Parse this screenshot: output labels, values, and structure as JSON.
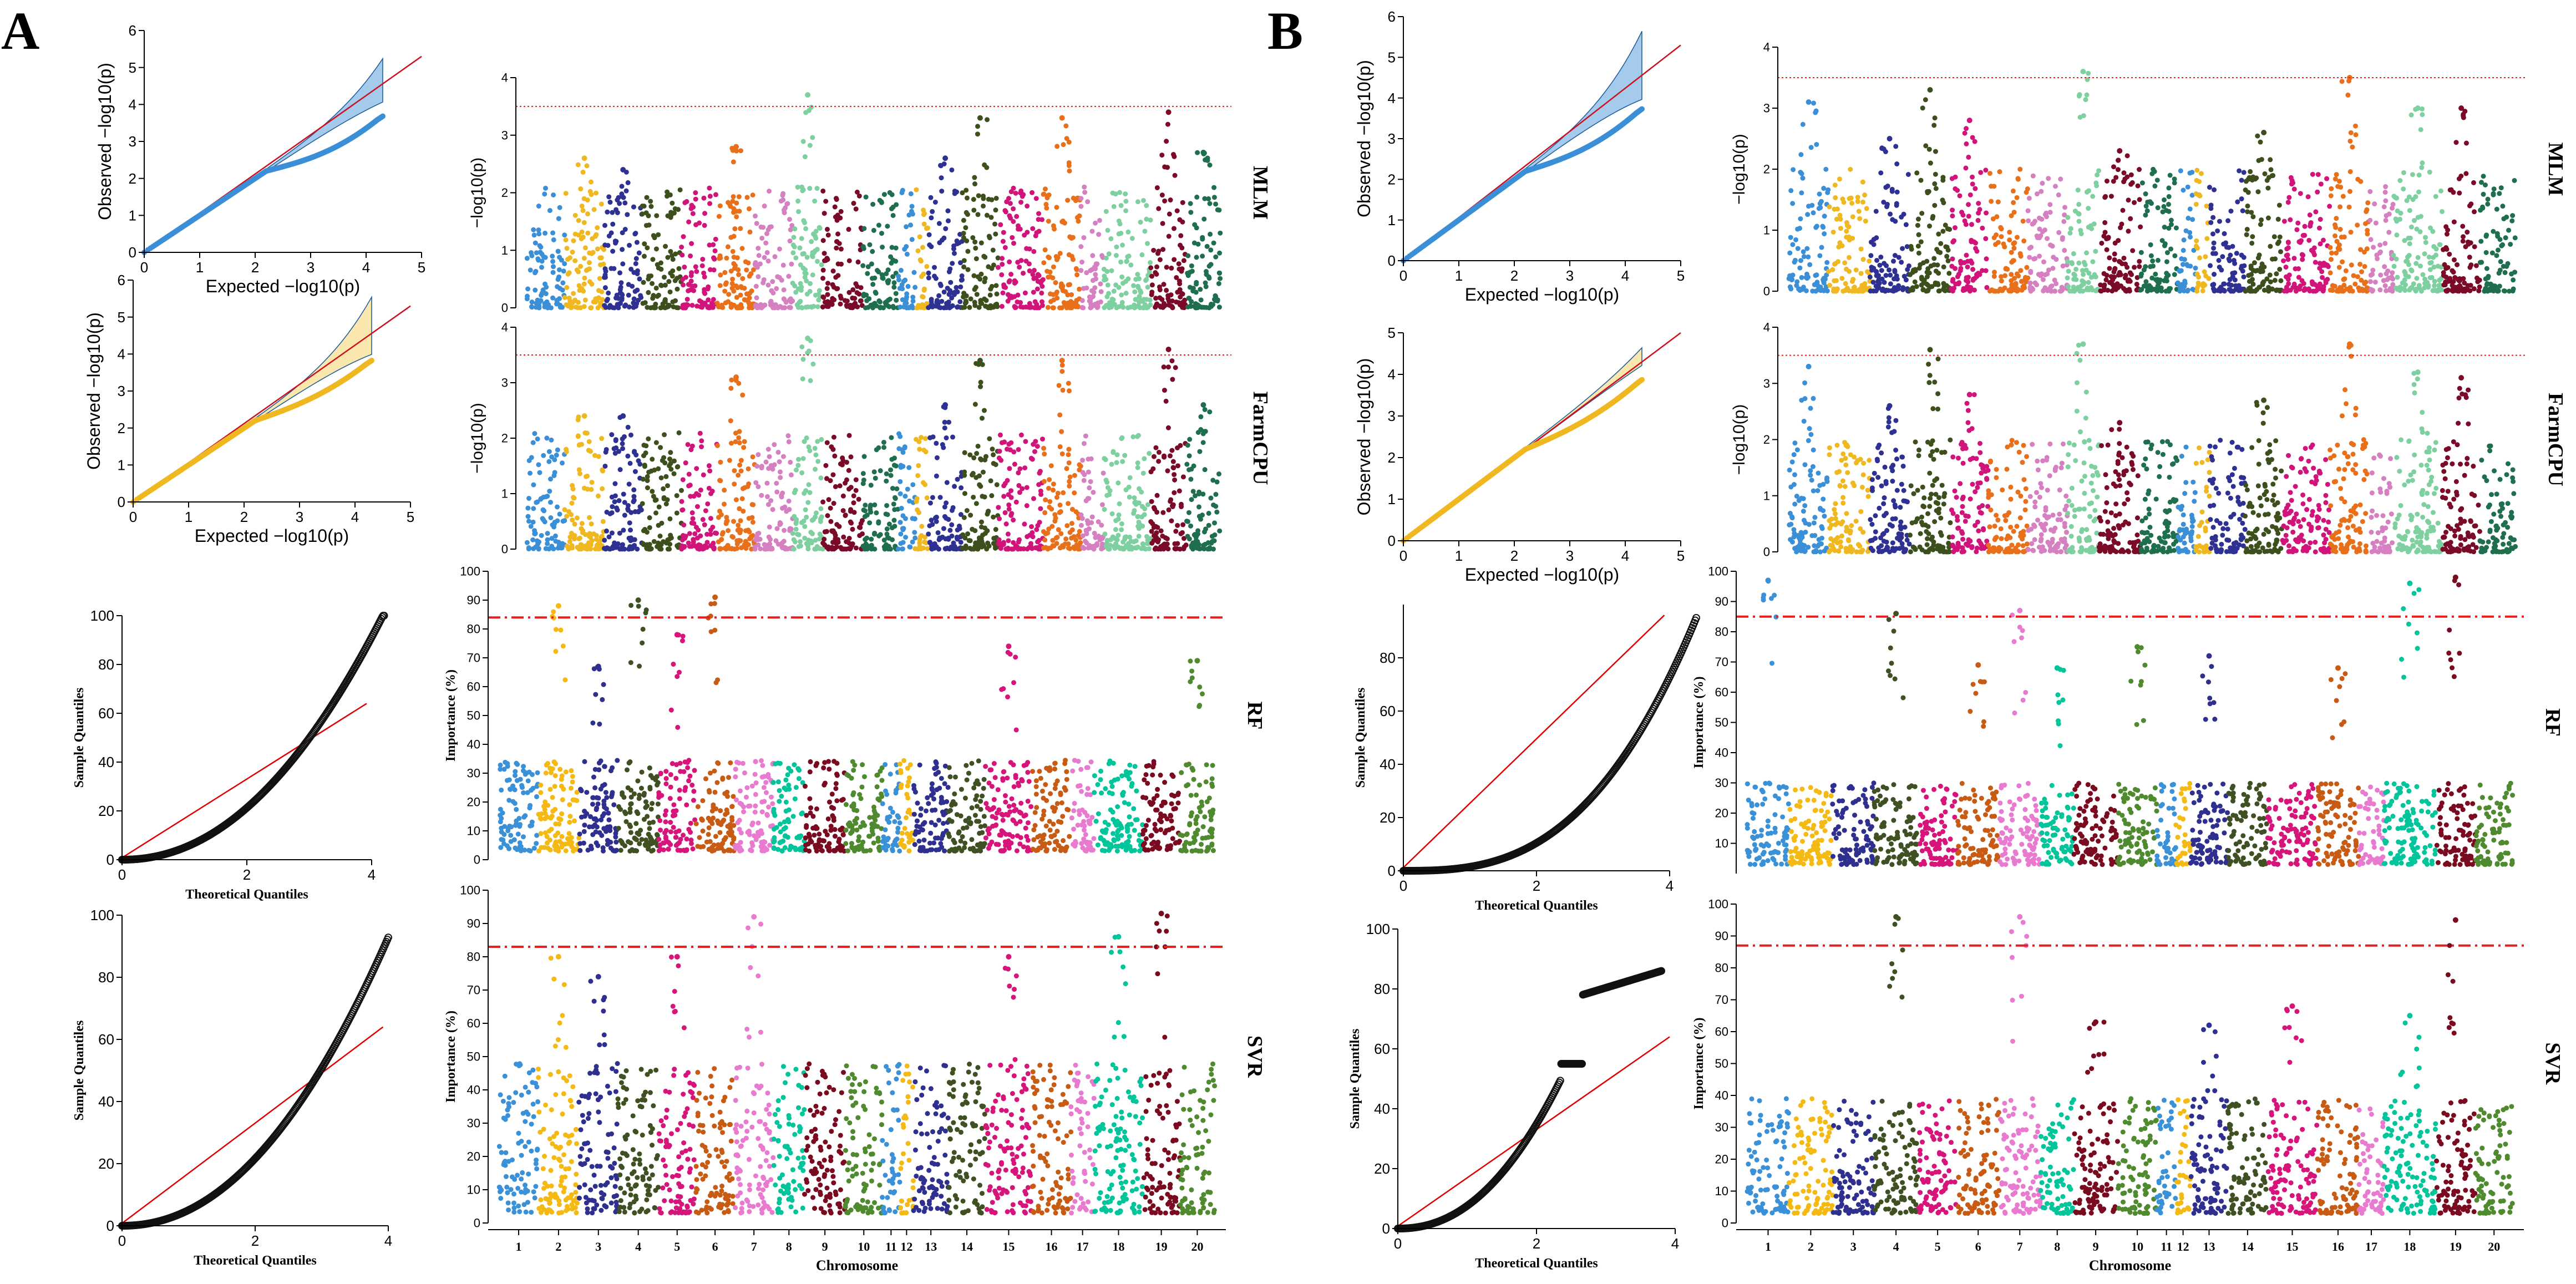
{
  "panel_labels": [
    "A",
    "B"
  ],
  "row_labels": [
    "MLM",
    "FarmCPU",
    "RF",
    "SVR"
  ],
  "chromosomes": [
    "1",
    "2",
    "3",
    "4",
    "5",
    "6",
    "7",
    "8",
    "9",
    "10",
    "11",
    "12",
    "13",
    "14",
    "15",
    "16",
    "17",
    "18",
    "19",
    "20"
  ],
  "chromosome_colors": [
    "#3a91d8",
    "#f5b914",
    "#2f2f8f",
    "#3f5123",
    "#d6147a",
    "#c85b14",
    "#e87bd0",
    "#00c49a",
    "#7a0a1f",
    "#4f8a2e",
    "#3a91d8",
    "#f5b914",
    "#2f2f8f",
    "#3f5123",
    "#d6147a",
    "#c85b14",
    "#e87bd0",
    "#00c49a",
    "#7a0a1f",
    "#4f8a2e"
  ],
  "gwas_colors": [
    "#3a8fd6",
    "#f0b820",
    "#2e3192",
    "#3c4f1c",
    "#d0147a",
    "#e8701a",
    "#d580c0",
    "#7ed0a0",
    "#7a0a28",
    "#1f6e4e",
    "#3a8fd6",
    "#f0b820",
    "#2e3192",
    "#3c4f1c",
    "#d0147a",
    "#e8701a",
    "#d580c0",
    "#7ed0a0",
    "#7a0a28",
    "#1f6e4e"
  ],
  "threshold_color": "#e52020",
  "chart_data": [
    {
      "panel": "A",
      "row": "MLM",
      "type": "qq",
      "xlabel": "Expected  −log10(p)",
      "ylabel": "Observed  −log10(p)",
      "xlim": [
        0,
        5
      ],
      "ylim": [
        0,
        6
      ],
      "xticks": [
        "0",
        "1",
        "2",
        "3",
        "4",
        "5"
      ],
      "yticks": [
        "0",
        "1",
        "2",
        "3",
        "4",
        "5",
        "6"
      ],
      "band_color": "#5aa0dc",
      "point_color": "#3a8fd6",
      "line_color": "#cc1020",
      "max_expected": 4.3,
      "band_top": 5.2,
      "deviation": 0.65
    },
    {
      "panel": "A",
      "row": "MLM",
      "type": "manhattan",
      "ylabel": "−log10(p)",
      "ylim": [
        0,
        4
      ],
      "yticks": [
        "0",
        "1",
        "2",
        "3",
        "4"
      ],
      "threshold": 3.5,
      "threshold_style": "dotted",
      "peaks": [
        0,
        2.6,
        2.4,
        0,
        0,
        2.8,
        0,
        3.7,
        0,
        0,
        0,
        0,
        2.6,
        3.3,
        0,
        3.3,
        0,
        0,
        3.4,
        2.7
      ],
      "base": 2.1
    },
    {
      "panel": "A",
      "row": "FarmCPU",
      "type": "qq",
      "xlabel": "Expected  −log10(p)",
      "ylabel": "Observed  −log10(p)",
      "xlim": [
        0,
        5
      ],
      "ylim": [
        0,
        6
      ],
      "xticks": [
        "0",
        "1",
        "2",
        "3",
        "4",
        "5"
      ],
      "yticks": [
        "0",
        "1",
        "2",
        "3",
        "4",
        "5",
        "6"
      ],
      "band_color": "#f5d36b",
      "point_color": "#f0b820",
      "line_color": "#cc1020",
      "max_expected": 4.3,
      "band_top": 5.5,
      "deviation": 0.5
    },
    {
      "panel": "A",
      "row": "FarmCPU",
      "type": "manhattan",
      "ylabel": "−log10(p)",
      "ylim": [
        0,
        4
      ],
      "yticks": [
        "0",
        "1",
        "2",
        "3",
        "4"
      ],
      "threshold": 3.5,
      "threshold_style": "dotted",
      "peaks": [
        0,
        2.4,
        2.4,
        0,
        0,
        3.1,
        0,
        3.8,
        0,
        0,
        0,
        0,
        2.6,
        3.4,
        0,
        3.4,
        0,
        0,
        3.6,
        2.6
      ],
      "base": 2.1
    },
    {
      "panel": "A",
      "row": "RF",
      "type": "quantile",
      "xlabel": "Theoretical Quantiles",
      "ylabel": "Sample Quantiles",
      "xlim": [
        0,
        4
      ],
      "ylim": [
        0,
        100
      ],
      "xticks": [
        "0",
        "2",
        "4"
      ],
      "yticks": [
        "0",
        "20",
        "40",
        "60",
        "80",
        "100"
      ],
      "max_x": 4.2,
      "top_value": 99,
      "shape": "convex"
    },
    {
      "panel": "A",
      "row": "RF",
      "type": "manhattan",
      "ylabel": "Importance (%)",
      "ylim": [
        0,
        100
      ],
      "yticks": [
        "0",
        "10",
        "20",
        "30",
        "40",
        "50",
        "60",
        "70",
        "80",
        "90",
        "100"
      ],
      "threshold": 84,
      "threshold_style": "dashdot",
      "peaks": [
        0,
        88,
        67,
        90,
        78,
        91,
        0,
        0,
        0,
        0,
        0,
        0,
        0,
        0,
        74,
        0,
        0,
        0,
        0,
        69
      ],
      "base": 35
    },
    {
      "panel": "A",
      "row": "SVR",
      "type": "quantile",
      "xlabel": "Theoretical Quantiles",
      "ylabel": "Sample Quantiles",
      "xlim": [
        0,
        4
      ],
      "ylim": [
        0,
        100
      ],
      "xticks": [
        "0",
        "2",
        "4"
      ],
      "yticks": [
        "0",
        "20",
        "40",
        "60",
        "80",
        "100"
      ],
      "max_x": 4.0,
      "top_value": 91,
      "shape": "convex"
    },
    {
      "panel": "A",
      "row": "SVR",
      "type": "manhattan",
      "ylabel": "Importance (%)",
      "ylim": [
        0,
        100
      ],
      "yticks": [
        "0",
        "10",
        "20",
        "30",
        "40",
        "50",
        "60",
        "70",
        "80",
        "90",
        "100"
      ],
      "threshold": 83,
      "threshold_style": "dashdot",
      "xlabel": "Chromosome",
      "peaks": [
        0,
        80,
        74,
        0,
        80,
        0,
        92,
        0,
        0,
        0,
        0,
        0,
        0,
        0,
        80,
        0,
        0,
        86,
        93,
        0
      ],
      "base": 50
    },
    {
      "panel": "B",
      "row": "MLM",
      "type": "qq",
      "xlabel": "Expected  −log10(p)",
      "ylabel": "Observed  −log10(p)",
      "xlim": [
        0,
        5
      ],
      "ylim": [
        0,
        6
      ],
      "xticks": [
        "0",
        "1",
        "2",
        "3",
        "4",
        "5"
      ],
      "yticks": [
        "0",
        "1",
        "2",
        "3",
        "4",
        "5",
        "6"
      ],
      "band_color": "#5aa0dc",
      "point_color": "#3a8fd6",
      "line_color": "#cc1020",
      "max_expected": 4.3,
      "band_top": 5.6,
      "deviation": 0.6
    },
    {
      "panel": "B",
      "row": "MLM",
      "type": "manhattan",
      "ylabel": "−log10(p)",
      "ylim": [
        0,
        4
      ],
      "yticks": [
        "0",
        "1",
        "2",
        "3",
        "4"
      ],
      "threshold": 3.5,
      "threshold_style": "dotted",
      "peaks": [
        3.1,
        0,
        2.5,
        3.3,
        2.8,
        0,
        0,
        3.6,
        2.3,
        0,
        0,
        0,
        0,
        2.6,
        0,
        3.5,
        0,
        3.0,
        3.0,
        0
      ],
      "base": 2.0
    },
    {
      "panel": "B",
      "row": "FarmCPU",
      "type": "qq",
      "xlabel": "Expected  −log10(p)",
      "ylabel": "Observed  −log10(p)",
      "xlim": [
        0,
        5
      ],
      "ylim": [
        0,
        5
      ],
      "xticks": [
        "0",
        "1",
        "2",
        "3",
        "4",
        "5"
      ],
      "yticks": [
        "0",
        "1",
        "2",
        "3",
        "4",
        "5"
      ],
      "band_color": "#f5d36b",
      "point_color": "#f0b820",
      "line_color": "#cc1020",
      "max_expected": 4.3,
      "band_top": 4.6,
      "deviation": 0.45
    },
    {
      "panel": "B",
      "row": "FarmCPU",
      "type": "manhattan",
      "ylabel": "−log10(p)",
      "ylim": [
        0,
        4
      ],
      "yticks": [
        "0",
        "1",
        "2",
        "3",
        "4"
      ],
      "threshold": 3.5,
      "threshold_style": "dotted",
      "peaks": [
        3.3,
        0,
        2.6,
        3.6,
        2.8,
        0,
        0,
        3.7,
        2.3,
        0,
        0,
        0,
        0,
        2.7,
        0,
        3.7,
        0,
        3.2,
        3.1,
        0
      ],
      "base": 2.0
    },
    {
      "panel": "B",
      "row": "RF",
      "type": "quantile",
      "xlabel": "Theoretical Quantiles",
      "ylabel": "Sample Quantiles",
      "xlim": [
        0,
        4
      ],
      "ylim": [
        0,
        100
      ],
      "xticks": [
        "0",
        "2",
        "4"
      ],
      "yticks": [
        "0",
        "20",
        "40",
        "60",
        "80"
      ],
      "max_x": 4.4,
      "top_value": 95,
      "shape": "steep"
    },
    {
      "panel": "B",
      "row": "RF",
      "type": "manhattan",
      "ylabel": "Importance (%)",
      "ylim": [
        0,
        100
      ],
      "yticks": [
        "10",
        "20",
        "30",
        "40",
        "50",
        "60",
        "70",
        "80",
        "90",
        "100"
      ],
      "threshold": 85,
      "threshold_style": "dashdot",
      "peaks": [
        97,
        0,
        0,
        86,
        0,
        69,
        87,
        68,
        0,
        75,
        0,
        0,
        72,
        0,
        0,
        68,
        0,
        96,
        98,
        0
      ],
      "base": 30
    },
    {
      "panel": "B",
      "row": "SVR",
      "type": "quantile",
      "xlabel": "Theoretical Quantiles",
      "ylabel": "Sample Quantiles",
      "xlim": [
        0,
        4
      ],
      "ylim": [
        0,
        100
      ],
      "xticks": [
        "0",
        "2",
        "4"
      ],
      "yticks": [
        "0",
        "20",
        "40",
        "60",
        "80",
        "100"
      ],
      "max_x": 3.8,
      "top_value": 86,
      "shape": "jump"
    },
    {
      "panel": "B",
      "row": "SVR",
      "type": "manhattan",
      "ylabel": "Importance (%)",
      "ylim": [
        0,
        100
      ],
      "yticks": [
        "0",
        "10",
        "20",
        "30",
        "40",
        "50",
        "60",
        "70",
        "80",
        "90",
        "100"
      ],
      "threshold": 87,
      "threshold_style": "dashdot",
      "xlabel": "Chromosome",
      "peaks": [
        0,
        0,
        0,
        96,
        0,
        0,
        96,
        0,
        63,
        0,
        0,
        0,
        62,
        0,
        68,
        0,
        0,
        65,
        95,
        0
      ],
      "base": 40
    }
  ]
}
